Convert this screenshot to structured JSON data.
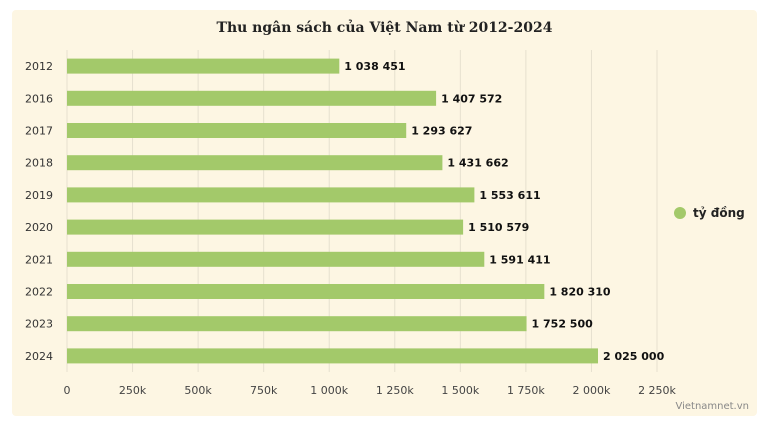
{
  "chart_data": {
    "type": "bar",
    "orientation": "horizontal",
    "title": "Thu ngân sách của Việt Nam từ 2012-2024",
    "categories": [
      "2012",
      "2016",
      "2017",
      "2018",
      "2019",
      "2020",
      "2021",
      "2022",
      "2023",
      "2024"
    ],
    "series": [
      {
        "name": "tỷ đồng",
        "values": [
          1038451,
          1407572,
          1293627,
          1431662,
          1553611,
          1510579,
          1591411,
          1820310,
          1752500,
          2025000
        ],
        "labels": [
          "1 038 451",
          "1 407 572",
          "1 293 627",
          "1 431 662",
          "1 553 611",
          "1 510 579",
          "1 591 411",
          "1 820 310",
          "1 752 500",
          "2 025 000"
        ],
        "color": "#a3c96a"
      }
    ],
    "xlim": [
      0,
      2250000
    ],
    "xticks": [
      0,
      250000,
      500000,
      750000,
      1000000,
      1250000,
      1500000,
      1750000,
      2000000,
      2250000
    ],
    "xtick_labels": [
      "0",
      "250k",
      "500k",
      "750k",
      "1 000k",
      "1 250k",
      "1 500k",
      "1 750k",
      "2 000k",
      "2 250k"
    ],
    "grid": true,
    "legend_position": "right"
  },
  "source": "Vietnamnet.vn",
  "colors": {
    "background": "#fdf6e3",
    "grid": "#e6e0cf",
    "bar": "#a3c96a"
  }
}
